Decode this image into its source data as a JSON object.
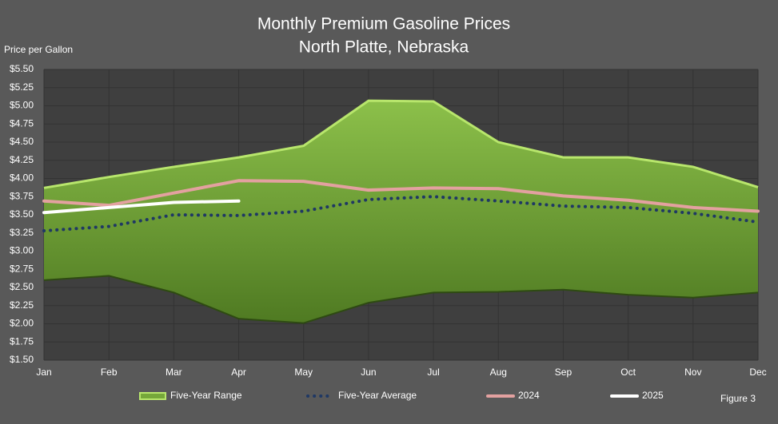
{
  "chart_data": {
    "type": "line",
    "title": "Monthly Premium Gasoline Prices",
    "subtitle": "North Platte, Nebraska",
    "y_label": "Price per Gallon",
    "annotation": "Figure 3",
    "categories": [
      "Jan",
      "Feb",
      "Mar",
      "Apr",
      "May",
      "Jun",
      "Jul",
      "Aug",
      "Sep",
      "Oct",
      "Nov",
      "Dec"
    ],
    "series": [
      {
        "name": "Five-Year Range",
        "color": "#76a83a",
        "edge_color": "#b8e66c",
        "high": [
          3.87,
          4.02,
          4.16,
          4.29,
          4.45,
          5.07,
          5.06,
          4.5,
          4.29,
          4.29,
          4.16,
          3.88
        ],
        "low": [
          2.6,
          2.66,
          2.43,
          2.07,
          2.01,
          2.29,
          2.43,
          2.44,
          2.47,
          2.4,
          2.36,
          2.43
        ]
      },
      {
        "name": "Five-Year Average",
        "color": "#1f3864",
        "dotted": true,
        "values": [
          3.28,
          3.34,
          3.5,
          3.49,
          3.55,
          3.71,
          3.75,
          3.69,
          3.62,
          3.6,
          3.52,
          3.4
        ]
      },
      {
        "name": "2024",
        "color": "#e3a1a0",
        "values": [
          3.69,
          3.63,
          3.8,
          3.97,
          3.96,
          3.84,
          3.87,
          3.86,
          3.76,
          3.7,
          3.6,
          3.55
        ]
      },
      {
        "name": "2025",
        "color": "#ffffff",
        "values": [
          3.53,
          3.6,
          3.67,
          3.69,
          null,
          null,
          null,
          null,
          null,
          null,
          null,
          null
        ]
      }
    ],
    "ylim": [
      1.5,
      5.5
    ],
    "yticks": [
      {
        "value": 1.5,
        "label": "$1.50"
      },
      {
        "value": 1.75,
        "label": "$1.75"
      },
      {
        "value": 2,
        "label": "$2.00"
      },
      {
        "value": 2.25,
        "label": "$2.25"
      },
      {
        "value": 2.5,
        "label": "$2.50"
      },
      {
        "value": 2.75,
        "label": "$2.75"
      },
      {
        "value": 3,
        "label": "$3.00"
      },
      {
        "value": 3.25,
        "label": "$3.25"
      },
      {
        "value": 3.5,
        "label": "$3.50"
      },
      {
        "value": 3.75,
        "label": "$3.75"
      },
      {
        "value": 4,
        "label": "$4.00"
      },
      {
        "value": 4.25,
        "label": "$4.25"
      },
      {
        "value": 4.5,
        "label": "$4.50"
      },
      {
        "value": 4.75,
        "label": "$4.75"
      },
      {
        "value": 5,
        "label": "$5.00"
      },
      {
        "value": 5.25,
        "label": "$5.25"
      },
      {
        "value": 5.5,
        "label": "$5.50"
      }
    ],
    "grid": true
  }
}
